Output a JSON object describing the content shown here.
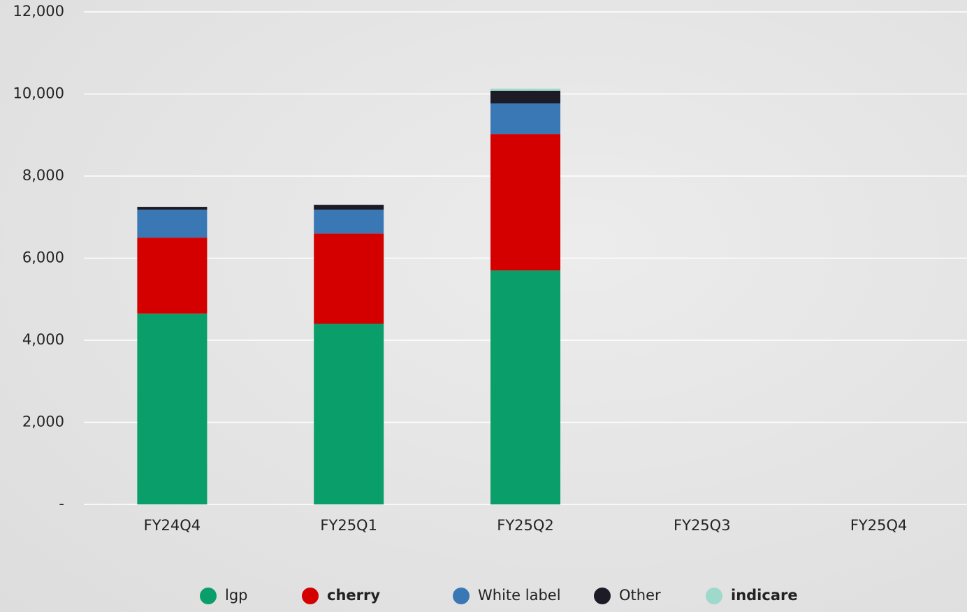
{
  "chart_data": {
    "type": "stacked_bar",
    "categories": [
      "FY24Q4",
      "FY25Q1",
      "FY25Q2",
      "FY25Q3",
      "FY25Q4"
    ],
    "series": [
      {
        "name": "lgp",
        "color": "#0a9e6a",
        "values": [
          4650,
          4400,
          5700,
          null,
          null
        ]
      },
      {
        "name": "cherry",
        "color": "#d40000",
        "values": [
          1850,
          2200,
          3320,
          null,
          null
        ]
      },
      {
        "name": "White label",
        "color": "#3a78b5",
        "values": [
          680,
          580,
          750,
          null,
          null
        ]
      },
      {
        "name": "Other",
        "color": "#1c1b26",
        "values": [
          70,
          120,
          310,
          null,
          null
        ]
      },
      {
        "name": "indicare",
        "color": "#9ed9cc",
        "values": [
          0,
          0,
          50,
          null,
          null
        ]
      }
    ],
    "ylim": [
      0,
      12000
    ],
    "yticks": [
      {
        "value": 0,
        "label": "-"
      },
      {
        "value": 2000,
        "label": "2,000"
      },
      {
        "value": 4000,
        "label": "4,000"
      },
      {
        "value": 6000,
        "label": "6,000"
      },
      {
        "value": 8000,
        "label": "8,000"
      },
      {
        "value": 10000,
        "label": "10,000"
      },
      {
        "value": 12000,
        "label": "12,000"
      }
    ],
    "grid": true
  }
}
